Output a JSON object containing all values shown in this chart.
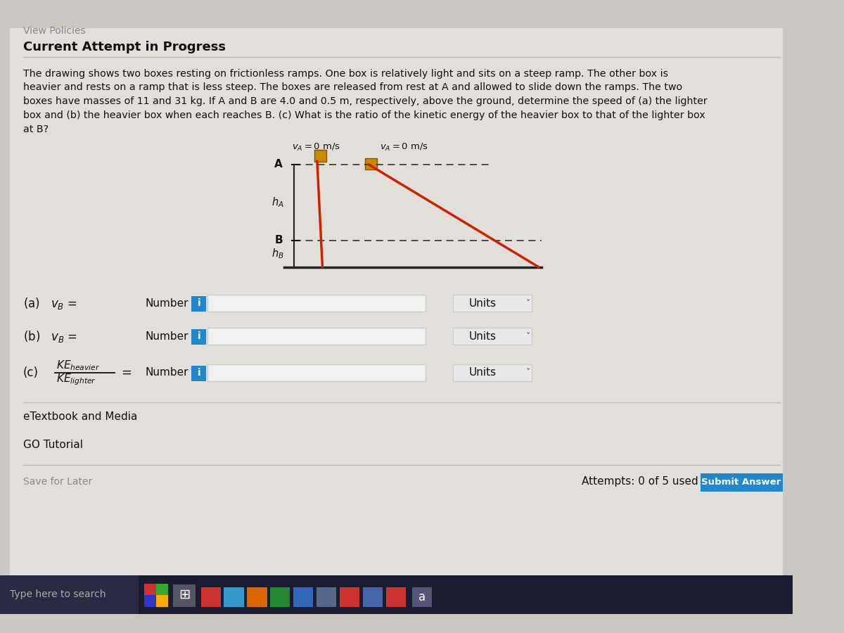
{
  "bg_color": "#cbc8c0",
  "content_bg": "#e2dfd8",
  "title": "Current Attempt in Progress",
  "view_policies": "View Policies",
  "problem_text_lines": [
    "The drawing shows two boxes resting on frictionless ramps. One box is relatively light and sits on a steep ramp. The other box is",
    "heavier and rests on a ramp that is less steep. The boxes are released from rest at A and allowed to slide down the ramps. The two",
    "boxes have masses of 11 and 31 kg. If A and B are 4.0 and 0.5 m, respectively, above the ground, determine the speed of (a) the lighter",
    "box and (b) the heavier box when each reaches B. (c) What is the ratio of the kinetic energy of the heavier box to that of the lighter box",
    "at B?"
  ],
  "diagram": {
    "ramp1_color": "#cc2200",
    "ramp2_color": "#cc2200",
    "ground_color": "#222222",
    "box_color": "#cc8800",
    "box_edge": "#885500",
    "dashed_color": "#333333",
    "line_color": "#222222"
  },
  "colors": {
    "number_btn": "#2288cc",
    "submit_btn": "#2288cc",
    "input_bg": "#f0f0f0",
    "units_bg": "#e8e8e8",
    "text_dark": "#111111",
    "text_medium": "#444444",
    "text_light": "#888888",
    "taskbar_bg": "#1c1c30",
    "separator": "#bbbbbb",
    "white": "#ffffff"
  },
  "taskbar": {
    "search_text": "Type here to search",
    "search_bg": "#2a2a45",
    "icons": [
      {
        "color": "#cc3333"
      },
      {
        "color": "#3399cc"
      },
      {
        "color": "#dd6600"
      },
      {
        "color": "#228833"
      },
      {
        "color": "#3366bb"
      },
      {
        "color": "#556688"
      },
      {
        "color": "#cc3333"
      },
      {
        "color": "#4466aa"
      },
      {
        "color": "#cc3333"
      }
    ],
    "a_icon_bg": "#555577"
  }
}
